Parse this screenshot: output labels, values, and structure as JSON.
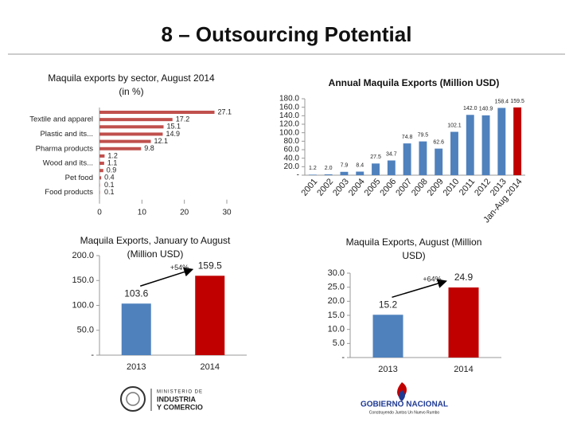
{
  "title": "8 – Outsourcing Potential",
  "logos": {
    "left": [
      "MINISTERIO DE",
      "INDUSTRIA",
      "Y COMERCIO"
    ],
    "right": {
      "title": "GOBIERNO NACIONAL",
      "tagline": "Construyendo Juntos Un Nuevo Rumbo"
    }
  },
  "chart_data": [
    {
      "type": "bar",
      "orientation": "horizontal",
      "title": "Maquila exports by sector, August 2014 (in %)",
      "categories": [
        null,
        "Textile and apparel",
        null,
        "Plastic and its...",
        null,
        "Pharma products",
        null,
        "Wood and its...",
        null,
        "Pet food",
        null,
        "Food products"
      ],
      "values": [
        27.1,
        17.2,
        15.1,
        14.9,
        12.1,
        9.8,
        1.2,
        1.1,
        0.9,
        0.4,
        0.1,
        0.1
      ],
      "color": "#c0504d",
      "xlim": [
        0,
        30
      ],
      "xticks": [
        0,
        10,
        20,
        30
      ]
    },
    {
      "type": "bar",
      "title": "Annual Maquila Exports (Million USD)",
      "categories": [
        "2001",
        "2002",
        "2003",
        "2004",
        "2005",
        "2006",
        "2007",
        "2008",
        "2009",
        "2010",
        "2011",
        "2012",
        "2013",
        "Jan-Aug 2014"
      ],
      "values": [
        1.2,
        2.0,
        7.9,
        8.4,
        27.5,
        34.7,
        74.8,
        79.5,
        62.6,
        102.1,
        142.0,
        140.9,
        158.4,
        159.5
      ],
      "value_labels": [
        "1.2",
        "2.0",
        "7.9",
        "8.4",
        "27.5",
        "34.7",
        "74.8",
        "79.5",
        "62.6",
        "102.1",
        "142.0",
        "140.9",
        "158.4",
        "159.5"
      ],
      "colors": [
        "#4f81bd",
        "#4f81bd",
        "#4f81bd",
        "#4f81bd",
        "#4f81bd",
        "#4f81bd",
        "#4f81bd",
        "#4f81bd",
        "#4f81bd",
        "#4f81bd",
        "#4f81bd",
        "#4f81bd",
        "#4f81bd",
        "#c00000"
      ],
      "ylim": [
        0,
        180
      ],
      "yticks": [
        {
          "value": 0,
          "label": "-"
        },
        {
          "value": 20,
          "label": "20.0"
        },
        {
          "value": 40,
          "label": "40.0"
        },
        {
          "value": 60,
          "label": "60.0"
        },
        {
          "value": 80,
          "label": "80.0"
        },
        {
          "value": 100,
          "label": "100.0"
        },
        {
          "value": 120,
          "label": "120.0"
        },
        {
          "value": 140,
          "label": "140.0"
        },
        {
          "value": 160,
          "label": "160.0"
        },
        {
          "value": 180,
          "label": "180.0"
        }
      ]
    },
    {
      "type": "bar",
      "title": "Maquila Exports, January to August (Million USD)",
      "categories": [
        "2013",
        "2014"
      ],
      "values": [
        103.6,
        159.5
      ],
      "colors": [
        "#4f81bd",
        "#c00000"
      ],
      "annotation": "+54%",
      "ylim": [
        0,
        200
      ],
      "yticks": [
        {
          "value": 0,
          "label": "-"
        },
        {
          "value": 50,
          "label": "50.0"
        },
        {
          "value": 100,
          "label": "100.0"
        },
        {
          "value": 150,
          "label": "150.0"
        },
        {
          "value": 200,
          "label": "200.0"
        }
      ]
    },
    {
      "type": "bar",
      "title": "Maquila Exports, August (Million USD)",
      "categories": [
        "2013",
        "2014"
      ],
      "values": [
        15.2,
        24.9
      ],
      "colors": [
        "#4f81bd",
        "#c00000"
      ],
      "annotation": "+64%",
      "ylim": [
        0,
        30
      ],
      "yticks": [
        {
          "value": 0,
          "label": "-"
        },
        {
          "value": 5,
          "label": "5.0"
        },
        {
          "value": 10,
          "label": "10.0"
        },
        {
          "value": 15,
          "label": "15.0"
        },
        {
          "value": 20,
          "label": "20.0"
        },
        {
          "value": 25,
          "label": "25.0"
        },
        {
          "value": 30,
          "label": "30.0"
        }
      ]
    }
  ]
}
